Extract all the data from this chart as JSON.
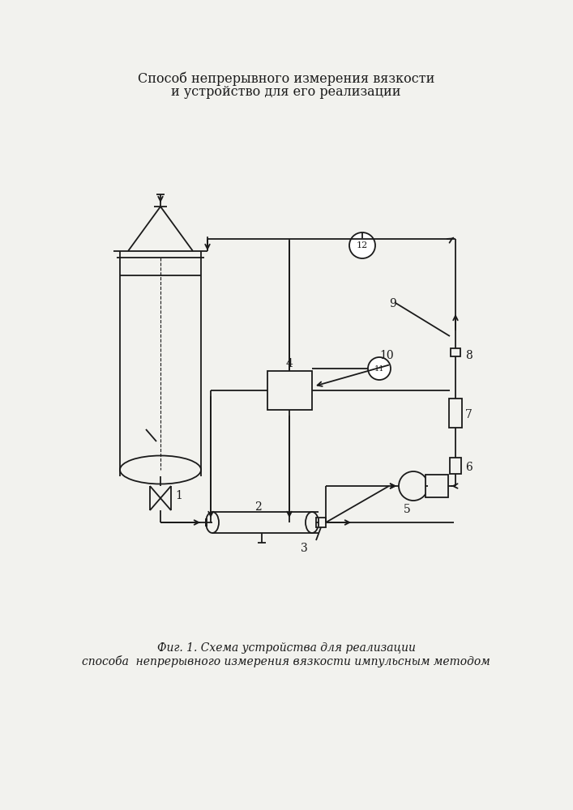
{
  "title_line1": "Способ непрерывного измерения вязкости",
  "title_line2": "и устройство для его реализации",
  "caption_line1": "Фиг. 1. Схема устройства для реализации",
  "caption_line2": "способа  непрерывного измерения вязкости импульсным методом",
  "bg_color": "#f2f2ee",
  "line_color": "#1a1a1a",
  "title_fontsize": 11.5,
  "caption_fontsize": 10
}
